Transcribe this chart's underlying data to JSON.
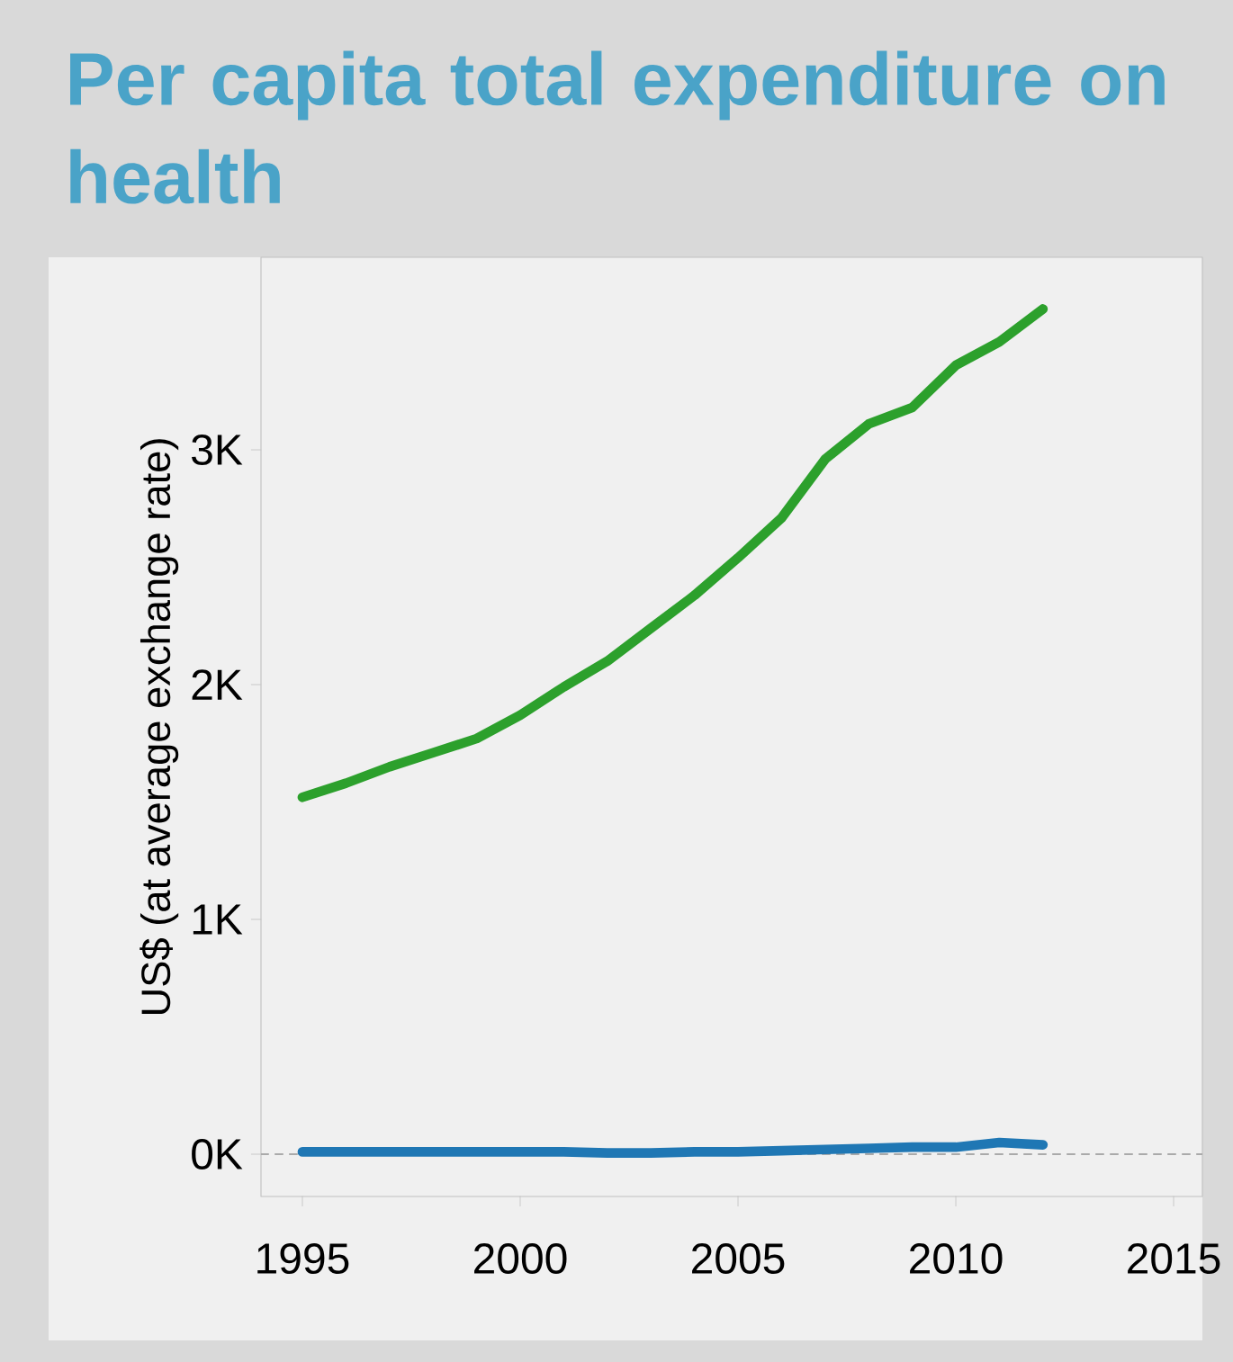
{
  "chart_data": {
    "type": "line",
    "title": "Per capita total expenditure on health",
    "ylabel": "US$ (at average exchange rate)",
    "x": [
      1995,
      1996,
      1997,
      1998,
      1999,
      2000,
      2001,
      2002,
      2003,
      2004,
      2005,
      2006,
      2007,
      2008,
      2009,
      2010,
      2011,
      2012
    ],
    "series": [
      {
        "color": "#2ca02c",
        "values": [
          1.52,
          1.58,
          1.65,
          1.71,
          1.77,
          1.87,
          1.99,
          2.1,
          2.24,
          2.38,
          2.54,
          2.71,
          2.96,
          3.11,
          3.18,
          3.36,
          3.46,
          3.6
        ]
      },
      {
        "color": "#1f77b4",
        "values": [
          0.01,
          0.01,
          0.01,
          0.01,
          0.01,
          0.01,
          0.01,
          0.005,
          0.005,
          0.01,
          0.01,
          0.015,
          0.02,
          0.025,
          0.03,
          0.03,
          0.05,
          0.04
        ]
      }
    ],
    "xlim": [
      1994.05,
      2015.66
    ],
    "ylim": [
      -0.18,
      3.82
    ],
    "xticks": [
      1995,
      2000,
      2005,
      2010,
      2015
    ],
    "yticks": [
      {
        "value": 0,
        "label": "0K"
      },
      {
        "value": 1,
        "label": "1K"
      },
      {
        "value": 2,
        "label": "2K"
      },
      {
        "value": 3,
        "label": "3K"
      }
    ],
    "ref_lines": [
      {
        "axis": "y",
        "value": 0,
        "color": "#aaaaaa",
        "line_style": "dashed"
      }
    ],
    "grid": false,
    "line_style": "solid",
    "marker": "none"
  }
}
